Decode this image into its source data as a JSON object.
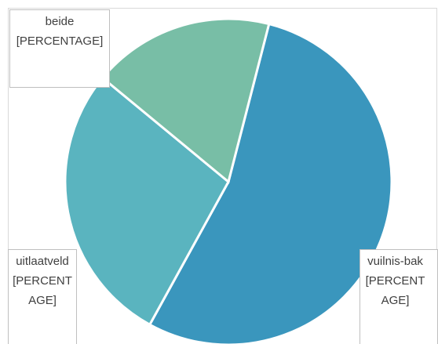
{
  "chart_data": {
    "type": "pie",
    "categories": [
      "vuilnis-bak",
      "uitlaatveld",
      "beide"
    ],
    "values": [
      54,
      28,
      18
    ],
    "value_labels": [
      "[PERCENTAGE]",
      "[PERCENTAGE]",
      "[PERCENTAGE]"
    ],
    "colors": [
      "#3a96bd",
      "#5ab4bf",
      "#78bea6"
    ]
  }
}
